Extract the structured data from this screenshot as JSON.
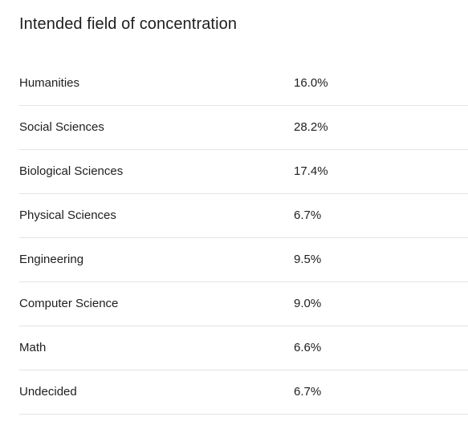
{
  "title": "Intended field of concentration",
  "rows": [
    {
      "field": "Humanities",
      "percent": "16.0%"
    },
    {
      "field": "Social Sciences",
      "percent": "28.2%"
    },
    {
      "field": "Biological Sciences",
      "percent": "17.4%"
    },
    {
      "field": "Physical Sciences",
      "percent": "6.7%"
    },
    {
      "field": "Engineering",
      "percent": "9.5%"
    },
    {
      "field": "Computer Science",
      "percent": "9.0%"
    },
    {
      "field": "Math",
      "percent": "6.6%"
    },
    {
      "field": "Undecided",
      "percent": "6.7%"
    }
  ]
}
